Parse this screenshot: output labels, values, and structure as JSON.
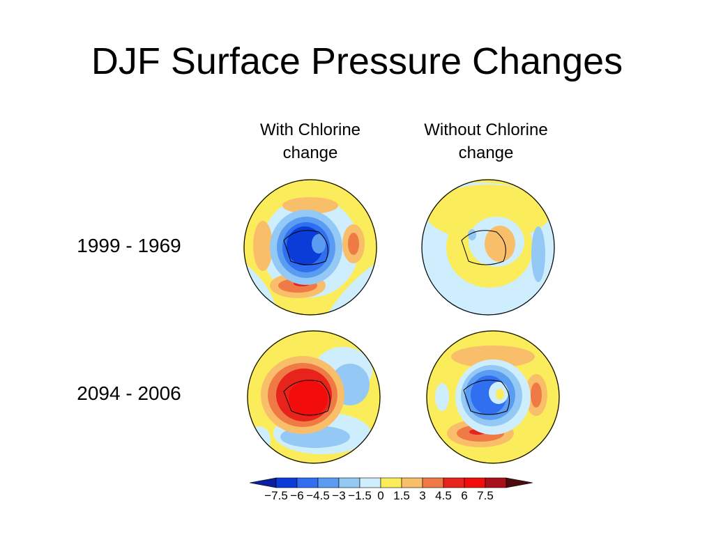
{
  "slide": {
    "title": "DJF Surface Pressure Changes"
  },
  "columns": [
    {
      "line1": "With Chlorine",
      "line2": "change"
    },
    {
      "line1": "Without Chlorine",
      "line2": "change"
    }
  ],
  "rows": [
    {
      "label": "1999 - 1969"
    },
    {
      "label": "2094 - 2006"
    }
  ],
  "colorbar": {
    "ticks": [
      "−7.5",
      "−6",
      "−4.5",
      "−3",
      "−1.5",
      "0",
      "1.5",
      "3",
      "4.5",
      "6",
      "7.5"
    ],
    "colors": [
      "#0a1f9e",
      "#0a3cd8",
      "#2f6ff0",
      "#5a9cf2",
      "#93c9f4",
      "#cfeefd",
      "#fbec5b",
      "#f9be6a",
      "#f07a45",
      "#e8231b",
      "#f20c0c",
      "#a8101a",
      "#4d0b10"
    ]
  }
}
